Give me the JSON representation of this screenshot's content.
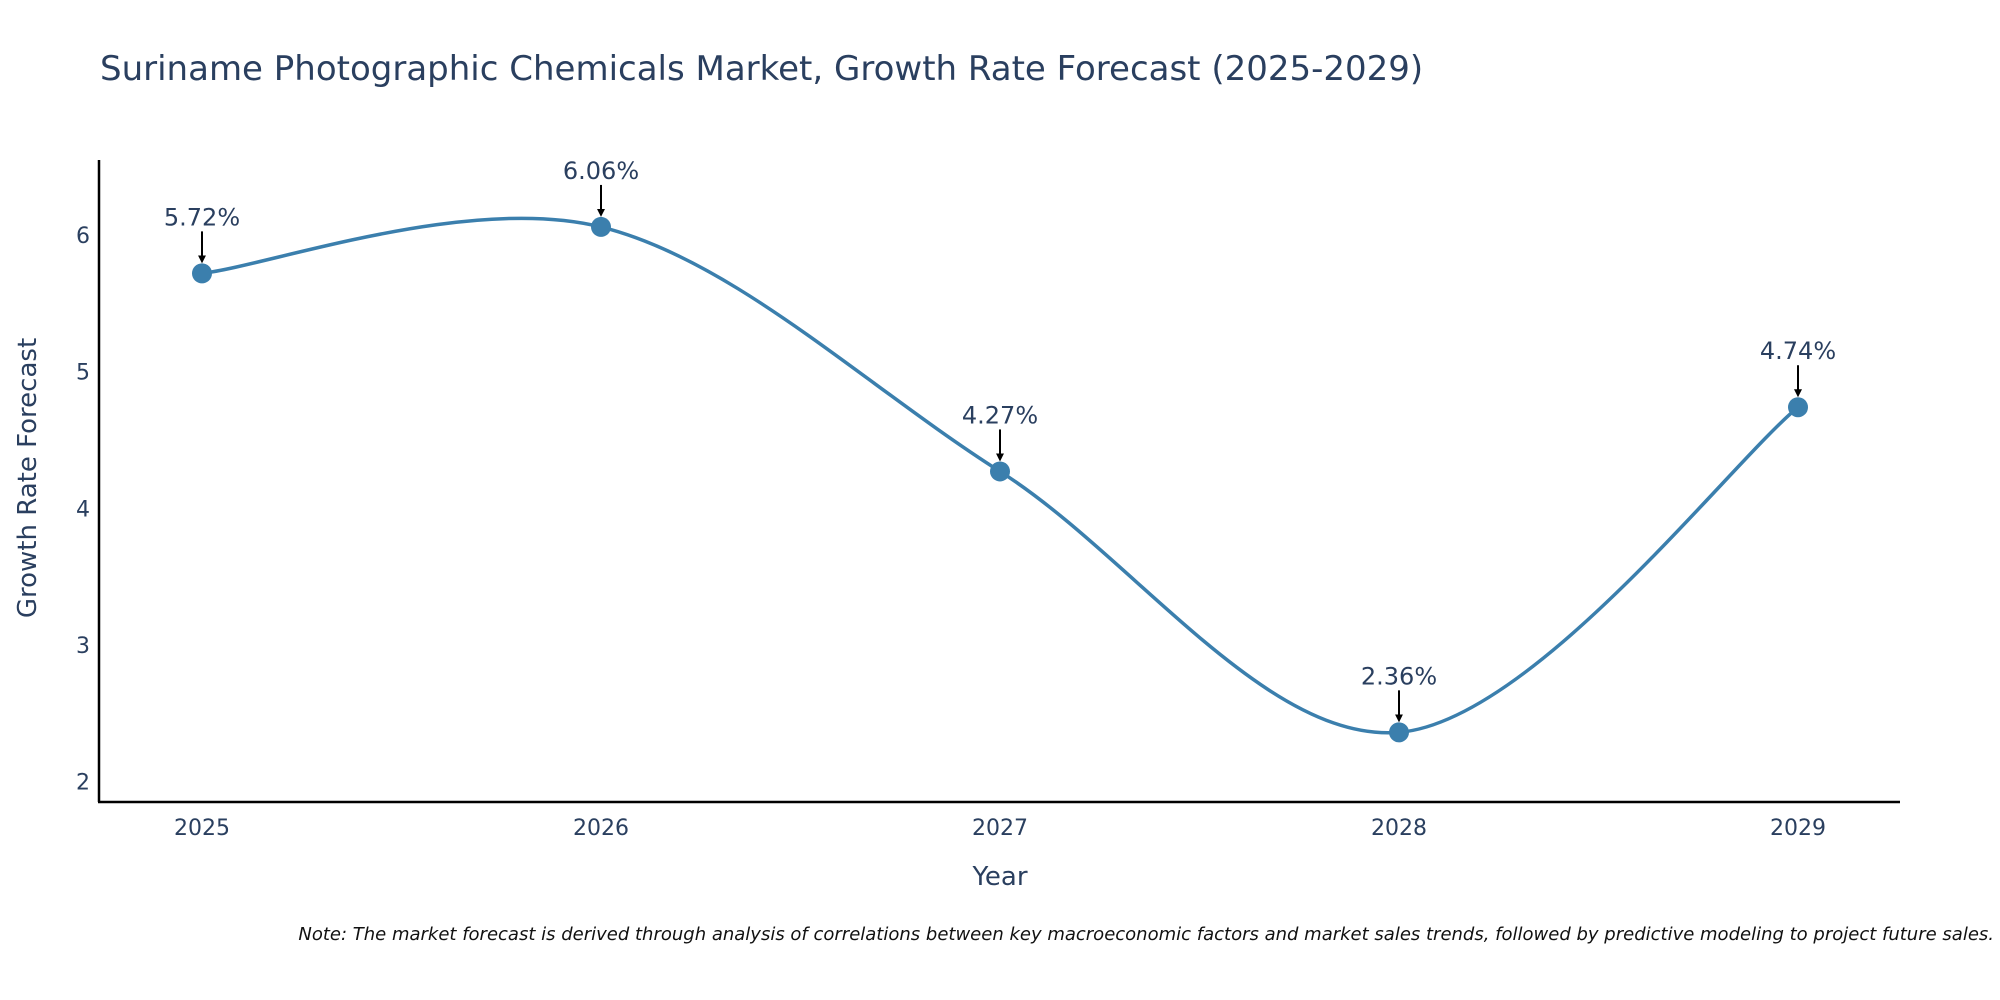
{
  "chart_data": {
    "type": "line",
    "title": "Suriname Photographic Chemicals Market, Growth Rate Forecast (2025-2029)",
    "xlabel": "Year",
    "ylabel": "Growth Rate Forecast",
    "categories": [
      "2025",
      "2026",
      "2027",
      "2028",
      "2029"
    ],
    "values": [
      5.72,
      6.06,
      4.27,
      2.36,
      4.74
    ],
    "data_labels": [
      "5.72%",
      "6.06%",
      "4.27%",
      "2.36%",
      "4.74%"
    ],
    "yticks": [
      2,
      3,
      4,
      5,
      6
    ],
    "ytick_labels": [
      "2",
      "3",
      "4",
      "5",
      "6"
    ],
    "ylim": [
      1.85,
      6.55
    ],
    "grid": false,
    "line_color": "#3b7fad",
    "marker_color": "#3b7fad",
    "arrow_color": "#000000",
    "axis_color": "#000000",
    "note": "Note: The market forecast is derived through analysis of correlations between key macroeconomic factors and market sales trends, followed by predictive modeling to project future sales."
  }
}
